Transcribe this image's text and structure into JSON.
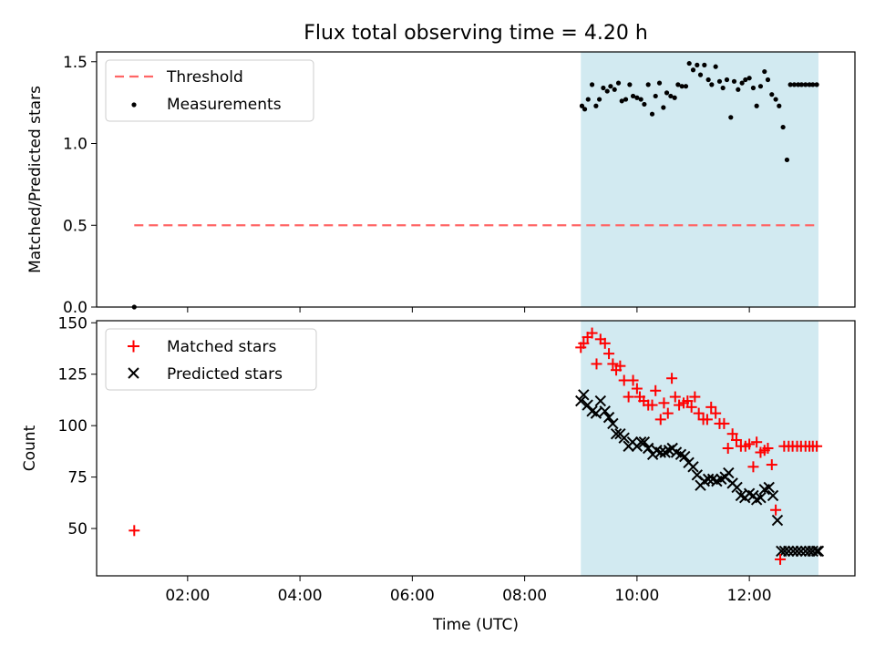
{
  "chart_data": [
    {
      "type": "scatter",
      "title": "Flux total observing time = 4.20 h",
      "xlabel": "",
      "ylabel": "Matched/Predicted stars",
      "xlim": [
        0.38,
        13.88
      ],
      "ylim": [
        0.0,
        1.56
      ],
      "yticks": [
        0.0,
        0.5,
        1.0,
        1.5
      ],
      "ytick_labels": [
        "0.0",
        "0.5",
        "1.0",
        "1.5"
      ],
      "shaded_span": {
        "x0": 9.0,
        "x1": 13.23,
        "color": "#add8e6"
      },
      "threshold": {
        "name": "Threshold",
        "y": 0.5,
        "x0": 1.05,
        "x1": 13.23,
        "color": "#ff6666"
      },
      "legend": {
        "location": "upper-left",
        "entries": [
          "Threshold",
          "Measurements"
        ]
      },
      "series": [
        {
          "name": "Measurements",
          "color": "#000000",
          "x": [
            1.05,
            9.02,
            9.07,
            9.13,
            9.2,
            9.27,
            9.33,
            9.4,
            9.47,
            9.53,
            9.6,
            9.67,
            9.73,
            9.8,
            9.87,
            9.93,
            10.0,
            10.07,
            10.13,
            10.2,
            10.27,
            10.33,
            10.4,
            10.47,
            10.53,
            10.6,
            10.67,
            10.73,
            10.8,
            10.87,
            10.93,
            11.0,
            11.07,
            11.13,
            11.2,
            11.27,
            11.33,
            11.4,
            11.47,
            11.53,
            11.6,
            11.67,
            11.73,
            11.8,
            11.87,
            11.93,
            12.0,
            12.07,
            12.13,
            12.2,
            12.27,
            12.33,
            12.4,
            12.47,
            12.53,
            12.6,
            12.67,
            12.73,
            12.8,
            12.87,
            12.93,
            13.0,
            13.07,
            13.13,
            13.2
          ],
          "y": [
            0.0,
            1.23,
            1.21,
            1.27,
            1.36,
            1.23,
            1.27,
            1.34,
            1.32,
            1.35,
            1.33,
            1.37,
            1.26,
            1.27,
            1.36,
            1.29,
            1.28,
            1.27,
            1.24,
            1.36,
            1.18,
            1.29,
            1.37,
            1.22,
            1.31,
            1.29,
            1.28,
            1.36,
            1.35,
            1.35,
            1.49,
            1.45,
            1.48,
            1.42,
            1.48,
            1.39,
            1.36,
            1.47,
            1.38,
            1.34,
            1.39,
            1.16,
            1.38,
            1.33,
            1.37,
            1.39,
            1.4,
            1.34,
            1.23,
            1.35,
            1.44,
            1.39,
            1.3,
            1.27,
            1.23,
            1.1,
            0.9,
            1.36,
            1.36,
            1.36,
            1.36,
            1.36,
            1.36,
            1.36,
            1.36
          ]
        }
      ]
    },
    {
      "type": "scatter",
      "title": "",
      "xlabel": "Time (UTC)",
      "ylabel": "Count",
      "xlim": [
        0.38,
        13.88
      ],
      "ylim": [
        27,
        151
      ],
      "xticks": [
        2,
        4,
        6,
        8,
        10,
        12
      ],
      "xtick_labels": [
        "02:00",
        "04:00",
        "06:00",
        "08:00",
        "10:00",
        "12:00"
      ],
      "yticks": [
        50,
        75,
        100,
        125,
        150
      ],
      "ytick_labels": [
        "50",
        "75",
        "100",
        "125",
        "150"
      ],
      "shaded_span": {
        "x0": 9.0,
        "x1": 13.23,
        "color": "#add8e6"
      },
      "legend": {
        "location": "upper-left",
        "entries": [
          "Matched stars",
          "Predicted stars"
        ]
      },
      "series": [
        {
          "name": "Matched stars",
          "marker": "plus",
          "color": "#ff0000",
          "x": [
            1.05,
            9.0,
            9.05,
            9.12,
            9.2,
            9.28,
            9.35,
            9.43,
            9.5,
            9.57,
            9.63,
            9.7,
            9.77,
            9.85,
            9.93,
            10.0,
            10.05,
            10.12,
            10.2,
            10.27,
            10.33,
            10.42,
            10.48,
            10.55,
            10.62,
            10.68,
            10.75,
            10.83,
            10.9,
            10.97,
            11.03,
            11.1,
            11.18,
            11.25,
            11.32,
            11.4,
            11.47,
            11.55,
            11.62,
            11.7,
            11.77,
            11.85,
            11.93,
            12.0,
            12.07,
            12.13,
            12.2,
            12.27,
            12.33,
            12.4,
            12.47,
            12.55,
            12.62,
            12.7,
            12.77,
            12.85,
            12.92,
            13.0,
            13.07,
            13.13,
            13.2
          ],
          "y": [
            49,
            138,
            140,
            143,
            145,
            130,
            142,
            140,
            135,
            130,
            127,
            129,
            122,
            114,
            122,
            118,
            114,
            112,
            110,
            110,
            117,
            103,
            111,
            106,
            123,
            114,
            110,
            111,
            112,
            109,
            114,
            106,
            103,
            103,
            109,
            106,
            101,
            101,
            89,
            96,
            93,
            90,
            90,
            91,
            80,
            92,
            87,
            88,
            89,
            81,
            59,
            35,
            90,
            90,
            90,
            90,
            90,
            90,
            90,
            90,
            90
          ]
        },
        {
          "name": "Predicted stars",
          "marker": "x",
          "color": "#000000",
          "x": [
            9.0,
            9.05,
            9.12,
            9.2,
            9.27,
            9.35,
            9.43,
            9.5,
            9.57,
            9.63,
            9.7,
            9.77,
            9.85,
            9.92,
            10.0,
            10.07,
            10.13,
            10.2,
            10.28,
            10.35,
            10.42,
            10.5,
            10.57,
            10.63,
            10.7,
            10.78,
            10.85,
            10.92,
            11.0,
            11.07,
            11.13,
            11.2,
            11.27,
            11.35,
            11.42,
            11.5,
            11.57,
            11.63,
            11.7,
            11.78,
            11.85,
            11.92,
            12.0,
            12.07,
            12.13,
            12.2,
            12.27,
            12.35,
            12.42,
            12.5,
            12.57,
            12.63,
            12.7,
            12.78,
            12.85,
            12.92,
            13.0,
            13.07,
            13.13,
            13.2,
            13.23
          ],
          "y": [
            112,
            115,
            110,
            107,
            106,
            112,
            107,
            104,
            101,
            96,
            96,
            94,
            90,
            92,
            90,
            92,
            92,
            89,
            86,
            88,
            87,
            87,
            88,
            89,
            87,
            86,
            85,
            82,
            80,
            76,
            71,
            73,
            74,
            74,
            73,
            74,
            75,
            77,
            72,
            70,
            66,
            65,
            67,
            66,
            64,
            65,
            69,
            70,
            66,
            54,
            39,
            39,
            39,
            39,
            39,
            39,
            39,
            39,
            39,
            39,
            39
          ]
        }
      ]
    }
  ]
}
